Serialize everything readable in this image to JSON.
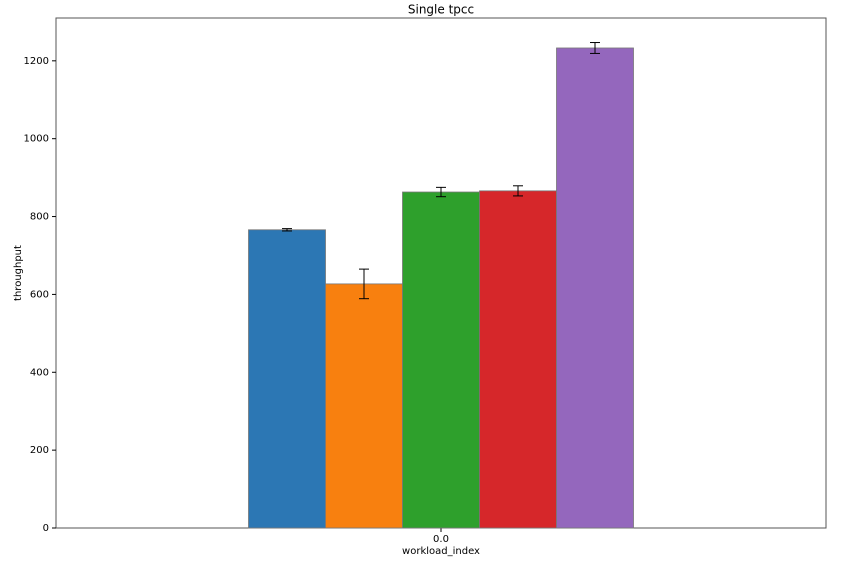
{
  "chart_data": {
    "type": "bar",
    "title": "Single tpcc",
    "x_label": "workload_index",
    "y_label": "throughput",
    "categories": [
      "0.0"
    ],
    "series": [
      {
        "color": "#2c77b4",
        "values": [
          766
        ],
        "errors": [
          3
        ]
      },
      {
        "color": "#f8800f",
        "values": [
          627
        ],
        "errors": [
          38
        ]
      },
      {
        "color": "#2ea02c",
        "values": [
          863
        ],
        "errors": [
          12
        ]
      },
      {
        "color": "#d6272a",
        "values": [
          866
        ],
        "errors": [
          13
        ]
      },
      {
        "color": "#9467bd",
        "values": [
          1233
        ],
        "errors": [
          14
        ]
      }
    ],
    "ylim": [
      0,
      1310
    ],
    "yticks": [
      0,
      200,
      400,
      600,
      800,
      1000,
      1200
    ],
    "grid": false
  }
}
